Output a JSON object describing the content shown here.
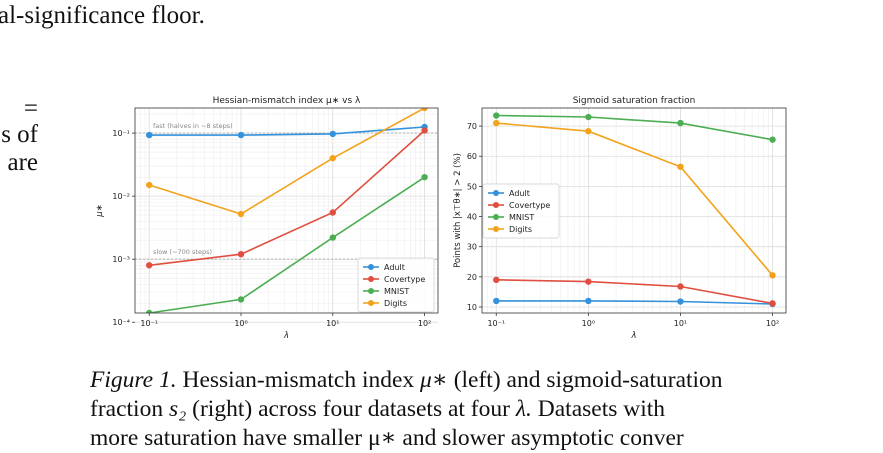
{
  "page": {
    "top_fragment": "al-significance floor.",
    "left_fragments": [
      "=",
      "s of",
      "are"
    ]
  },
  "colors": {
    "Adult": "#3491dc",
    "Covertype": "#e04e3f",
    "MNIST": "#4cae52",
    "Digits": "#f2a31b"
  },
  "chart_data": [
    {
      "type": "line",
      "title": "Hessian-mismatch index μ∗ vs λ",
      "xlabel": "λ",
      "ylabel": "μ∗",
      "xscale": "log",
      "yscale": "log",
      "x": [
        0.1,
        1,
        10,
        100
      ],
      "xticks": [
        "10⁻¹",
        "10⁰",
        "10¹",
        "10²"
      ],
      "yticks": [
        "10⁻⁴",
        "10⁻³",
        "10⁻²",
        "10⁻¹"
      ],
      "xlim": [
        0.07,
        140
      ],
      "ylim": [
        0.00014,
        0.25
      ],
      "grid": true,
      "legend": "lower-right",
      "series": [
        {
          "name": "Adult",
          "values": [
            0.093,
            0.093,
            0.097,
            0.125
          ]
        },
        {
          "name": "Covertype",
          "values": [
            0.0008,
            0.0012,
            0.0055,
            0.11
          ]
        },
        {
          "name": "MNIST",
          "values": [
            2.3e-05,
            0.00023,
            0.0022,
            0.02
          ]
        },
        {
          "name": "Digits",
          "values": [
            0.015,
            0.0052,
            0.04,
            0.25
          ]
        }
      ],
      "reference_lines": [
        {
          "y": 0.1,
          "label": "fast (halves in ~8 steps)"
        },
        {
          "y": 0.001,
          "label": "slow (~700 steps)"
        }
      ]
    },
    {
      "type": "line",
      "title": "Sigmoid saturation fraction",
      "xlabel": "λ",
      "ylabel": "Points with |x⊤θ∗| > 2 (%)",
      "xscale": "log",
      "x": [
        0.1,
        1,
        10,
        100
      ],
      "xticks": [
        "10⁻¹",
        "10⁰",
        "10¹",
        "10²"
      ],
      "yticks": [
        "10",
        "20",
        "30",
        "40",
        "50",
        "60",
        "70"
      ],
      "xlim": [
        0.07,
        140
      ],
      "ylim": [
        8,
        76
      ],
      "grid": true,
      "legend": "center-left",
      "series": [
        {
          "name": "Adult",
          "values": [
            12.0,
            12.0,
            11.8,
            11.0
          ]
        },
        {
          "name": "Covertype",
          "values": [
            19.0,
            18.4,
            16.8,
            11.2
          ]
        },
        {
          "name": "MNIST",
          "values": [
            73.5,
            73.0,
            71.0,
            65.5
          ]
        },
        {
          "name": "Digits",
          "values": [
            71.0,
            68.3,
            56.5,
            20.5
          ]
        }
      ]
    }
  ],
  "caption": {
    "lead": "Figure 1.",
    "line1_rest": "Hessian-mismatch index",
    "mu": "μ∗",
    "line1_tail": "(left) and sigmoid-saturation",
    "line2_a": "fraction",
    "s2": "s₂",
    "line2_b": "(right) across four datasets at four",
    "lam": "λ.",
    "line2_c": "Datasets with",
    "line3": "more saturation have smaller μ∗ and slower asymptotic conver"
  }
}
